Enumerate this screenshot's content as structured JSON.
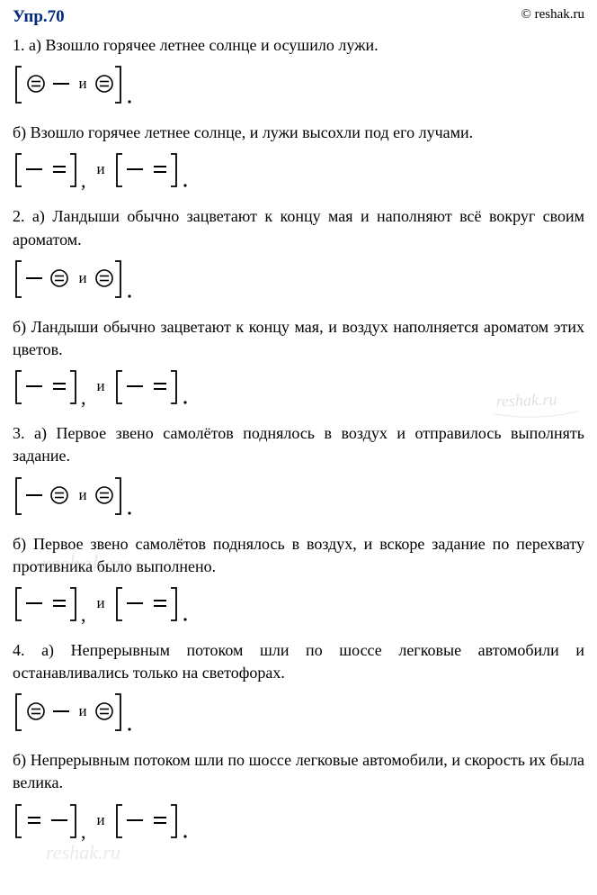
{
  "header": {
    "title": "Упр.70",
    "copyright": "© reshak.ru"
  },
  "items": [
    {
      "label": "1. а)",
      "text": "Взошло горячее летнее солнце и осушило лужи.",
      "scheme": "A"
    },
    {
      "label": "б)",
      "text": "Взошло горячее летнее солнце, и лужи высохли под его лучами.",
      "scheme": "B"
    },
    {
      "label": "2. а)",
      "text": "Ландыши обычно зацветают к концу мая и наполняют всё вокруг своим ароматом.",
      "scheme": "C"
    },
    {
      "label": "б)",
      "text": "Ландыши обычно зацветают к концу мая, и воздух наполняется ароматом этих цветов.",
      "scheme": "B"
    },
    {
      "label": "3. а)",
      "text": "Первое звено самолётов поднялось в воздух и отправилось выполнять задание.",
      "scheme": "C"
    },
    {
      "label": "б)",
      "text": "Первое звено самолётов поднялось в воздух, и вскоре задание по перехвату противника было выполнено.",
      "scheme": "B"
    },
    {
      "label": "4. а)",
      "text": "Непрерывным потоком шли по шоссе легковые автомобили и останавливались только на светофорах.",
      "scheme": "A"
    },
    {
      "label": "б)",
      "text": "Непрерывным потоком шли по шоссе легковые автомобили, и скорость их была велика.",
      "scheme": "D"
    }
  ],
  "conjunction": "и",
  "watermark": "reshak.ru",
  "colors": {
    "title": "#002b7f",
    "text": "#000000",
    "bracket": "#000000",
    "background": "#ffffff"
  },
  "schemes_desc": {
    "A": "[⊜ — и ⊜].",
    "B": "[— =], и [— =].",
    "C": "[— ⊜ и ⊜].",
    "D": "[= —], и [— =]."
  }
}
